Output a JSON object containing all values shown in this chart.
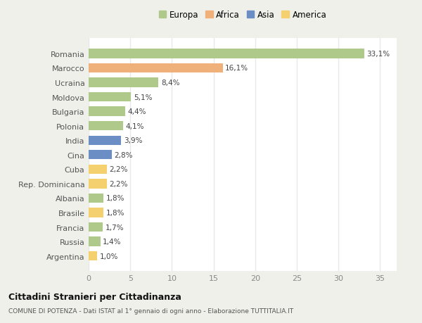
{
  "categories": [
    "Romania",
    "Marocco",
    "Ucraina",
    "Moldova",
    "Bulgaria",
    "Polonia",
    "India",
    "Cina",
    "Cuba",
    "Rep. Dominicana",
    "Albania",
    "Brasile",
    "Francia",
    "Russia",
    "Argentina"
  ],
  "values": [
    33.1,
    16.1,
    8.4,
    5.1,
    4.4,
    4.1,
    3.9,
    2.8,
    2.2,
    2.2,
    1.8,
    1.8,
    1.7,
    1.4,
    1.0
  ],
  "colors": [
    "#aec98a",
    "#f0b07a",
    "#aec98a",
    "#aec98a",
    "#aec98a",
    "#aec98a",
    "#6b8ec4",
    "#6b8ec4",
    "#f5d06e",
    "#f5d06e",
    "#aec98a",
    "#f5d06e",
    "#aec98a",
    "#aec98a",
    "#f5d06e"
  ],
  "labels": [
    "33,1%",
    "16,1%",
    "8,4%",
    "5,1%",
    "4,4%",
    "4,1%",
    "3,9%",
    "2,8%",
    "2,2%",
    "2,2%",
    "1,8%",
    "1,8%",
    "1,7%",
    "1,4%",
    "1,0%"
  ],
  "legend": {
    "Europa": "#aec98a",
    "Africa": "#f0b07a",
    "Asia": "#6b8ec4",
    "America": "#f5d06e"
  },
  "xlim": [
    0,
    37
  ],
  "xticks": [
    0,
    5,
    10,
    15,
    20,
    25,
    30,
    35
  ],
  "title": "Cittadini Stranieri per Cittadinanza",
  "subtitle": "COMUNE DI POTENZA - Dati ISTAT al 1° gennaio di ogni anno - Elaborazione TUTTITALIA.IT",
  "bg_color": "#f0f0eb",
  "plot_bg_color": "#ffffff",
  "grid_color": "#e8e8e8",
  "bar_height": 0.65
}
